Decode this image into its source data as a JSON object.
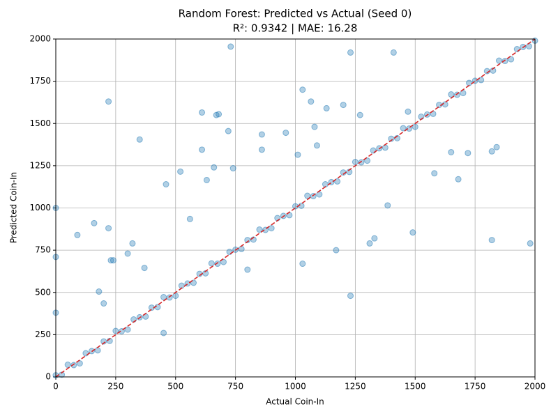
{
  "chart_data": {
    "type": "scatter",
    "title": "Random Forest: Predicted vs Actual (Seed 0)",
    "subtitle": "R²: 0.9342 | MAE: 16.28",
    "xlabel": "Actual Coin-In",
    "ylabel": "Predicted Coin-In",
    "xlim": [
      0,
      2000
    ],
    "ylim": [
      0,
      2000
    ],
    "xticks": [
      0,
      250,
      500,
      750,
      1000,
      1250,
      1500,
      1750,
      2000
    ],
    "yticks": [
      0,
      250,
      500,
      750,
      1000,
      1250,
      1500,
      1750,
      2000
    ],
    "grid": true,
    "series": [
      {
        "color": "#1f77b4",
        "x": [
          0,
          25,
          50,
          75,
          100,
          125,
          150,
          175,
          200,
          225,
          250,
          275,
          300,
          325,
          350,
          375,
          400,
          425,
          450,
          475,
          500,
          525,
          550,
          575,
          600,
          625,
          650,
          675,
          700,
          725,
          750,
          775,
          800,
          825,
          850,
          875,
          900,
          925,
          950,
          975,
          1000,
          1025,
          1050,
          1075,
          1100,
          1125,
          1150,
          1175,
          1200,
          1225,
          1250,
          1275,
          1300,
          1325,
          1350,
          1375,
          1400,
          1425,
          1450,
          1475,
          1500,
          1525,
          1550,
          1575,
          1600,
          1625,
          1650,
          1675,
          1700,
          1725,
          1750,
          1775,
          1800,
          1825,
          1850,
          1875,
          1900,
          1925,
          1950,
          1975,
          2000,
          0,
          0,
          0,
          220,
          350,
          730,
          1230,
          1410,
          90,
          160,
          220,
          320,
          230,
          240,
          460,
          520,
          610,
          610,
          680,
          670,
          720,
          660,
          740,
          630,
          560,
          860,
          960,
          1030,
          1065,
          1200,
          1270,
          1130,
          1470,
          1820,
          1980,
          1490,
          1330,
          1310,
          1170,
          1230,
          1030,
          450,
          180,
          200,
          370,
          300,
          800,
          1840,
          1820,
          1580,
          1650,
          1680,
          1720,
          1385,
          860,
          1080,
          1010,
          1090
        ],
        "values": [
          10,
          13,
          72,
          70,
          80,
          140,
          153,
          157,
          210,
          213,
          272,
          270,
          280,
          340,
          353,
          357,
          410,
          413,
          472,
          470,
          480,
          540,
          553,
          557,
          610,
          613,
          672,
          670,
          680,
          740,
          753,
          757,
          810,
          813,
          872,
          870,
          880,
          940,
          953,
          957,
          1010,
          1013,
          1072,
          1070,
          1080,
          1140,
          1153,
          1157,
          1210,
          1213,
          1272,
          1270,
          1280,
          1340,
          1353,
          1357,
          1410,
          1413,
          1472,
          1470,
          1480,
          1540,
          1553,
          1557,
          1610,
          1613,
          1672,
          1670,
          1680,
          1740,
          1753,
          1757,
          1810,
          1813,
          1872,
          1870,
          1880,
          1940,
          1953,
          1957,
          1990,
          1000,
          710,
          380,
          1630,
          1405,
          1955,
          1920,
          1920,
          840,
          910,
          880,
          790,
          690,
          690,
          1140,
          1215,
          1565,
          1345,
          1555,
          1550,
          1455,
          1240,
          1235,
          1165,
          935,
          1435,
          1445,
          1700,
          1630,
          1610,
          1550,
          1590,
          1570,
          810,
          790,
          855,
          820,
          790,
          750,
          480,
          670,
          260,
          505,
          435,
          645,
          730,
          635,
          1360,
          1335,
          1205,
          1330,
          1170,
          1325,
          1015,
          1345,
          1480,
          1315,
          1370
        ]
      }
    ],
    "reference_line": {
      "color": "#d62728",
      "x": [
        0,
        2000
      ],
      "values": [
        0,
        2000
      ]
    }
  }
}
